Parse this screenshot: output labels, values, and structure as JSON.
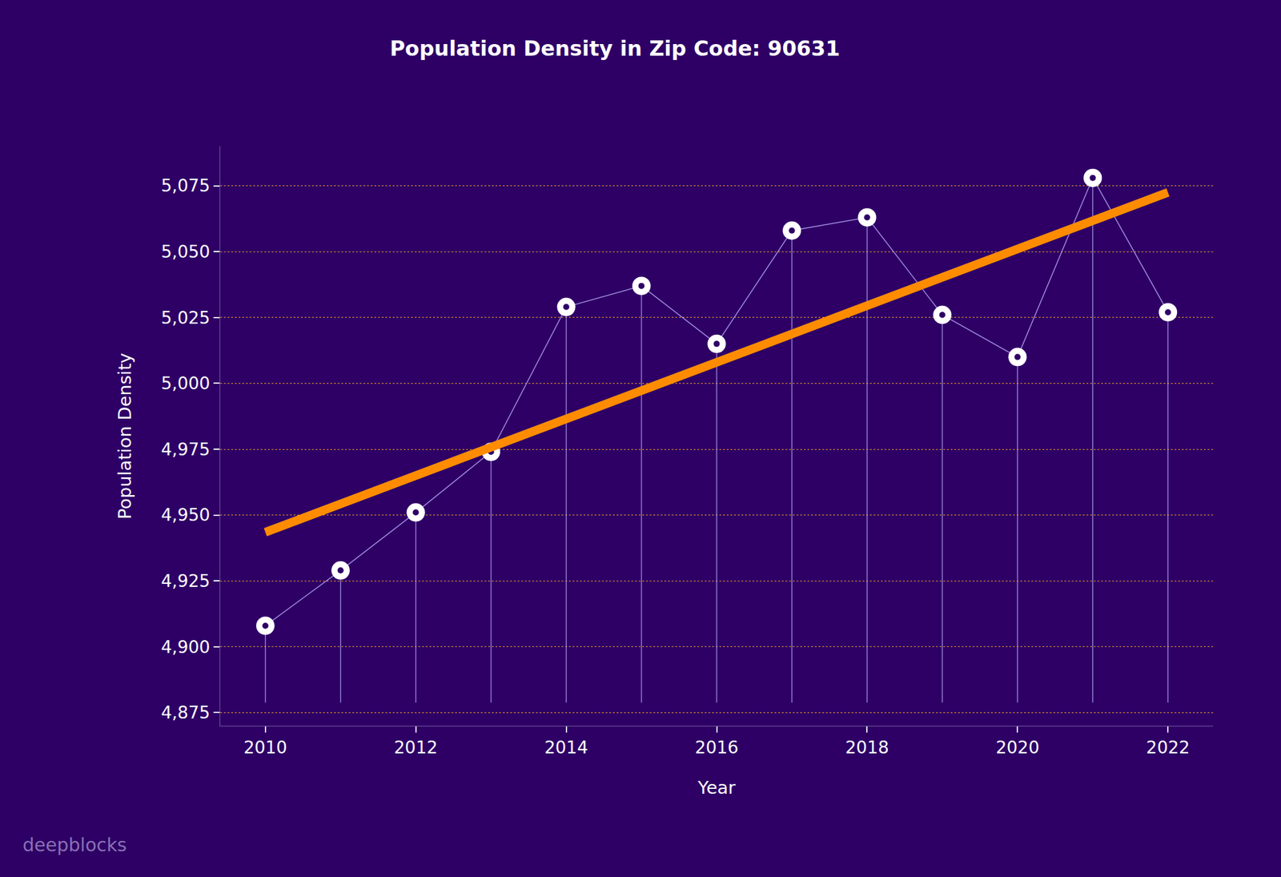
{
  "chart_data": {
    "type": "line",
    "title": "Population Density in Zip Code: 90631",
    "x_label": "Year",
    "y_label": "Population Density",
    "watermark": "deepblocks",
    "x": [
      2010,
      2011,
      2012,
      2013,
      2014,
      2015,
      2016,
      2017,
      2018,
      2019,
      2020,
      2021,
      2022
    ],
    "series": [
      {
        "type": "line",
        "color": "#ffffff",
        "marker": "circle",
        "values": [
          4908,
          4929,
          4951,
          4974,
          5029,
          5037,
          5015,
          5058,
          5063,
          5026,
          5010,
          5078,
          5027
        ]
      },
      {
        "type": "trend",
        "color": "#ff8c00",
        "line_style": "solid",
        "x": [
          2010,
          2022
        ],
        "values": [
          4943.5,
          5072.5
        ]
      }
    ],
    "xlim": [
      2009.4,
      2022.6
    ],
    "xticks": [
      2010,
      2012,
      2014,
      2016,
      2018,
      2020,
      2022
    ],
    "ylim": [
      4870,
      5090
    ],
    "yticks": [
      {
        "value": 4875,
        "label": "4,875"
      },
      {
        "value": 4900,
        "label": "4,900"
      },
      {
        "value": 4925,
        "label": "4,925"
      },
      {
        "value": 4950,
        "label": "4,950"
      },
      {
        "value": 4975,
        "label": "4,975"
      },
      {
        "value": 5000,
        "label": "5,000"
      },
      {
        "value": 5025,
        "label": "5,025"
      },
      {
        "value": 5050,
        "label": "5,050"
      },
      {
        "value": 5075,
        "label": "5,075"
      }
    ],
    "grid": true
  }
}
